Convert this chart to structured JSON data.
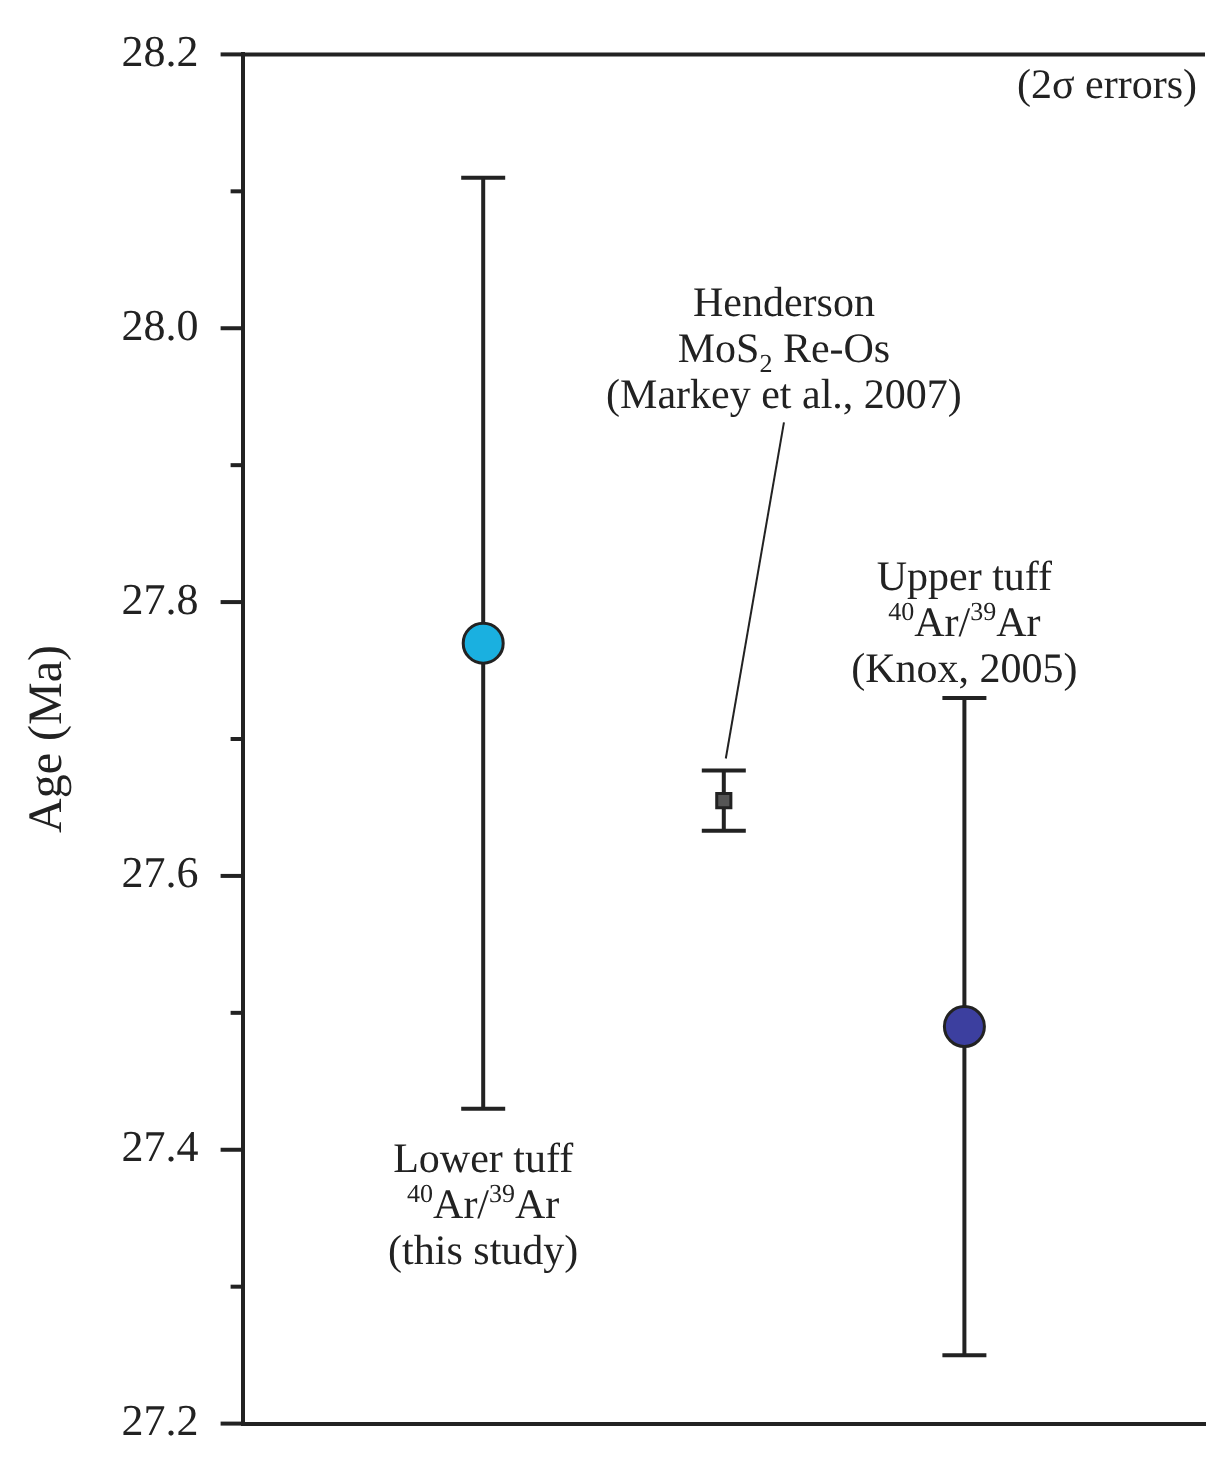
{
  "chart_data": {
    "type": "scatter",
    "ylabel": "Age (Ma)",
    "categories": [
      null,
      null,
      null
    ],
    "ylim": [
      27.2,
      28.2
    ],
    "yticks": [
      27.2,
      {
        "value": 27.3,
        "label": null
      },
      27.4,
      {
        "value": 27.5,
        "label": null
      },
      27.6,
      {
        "value": 27.7,
        "label": null
      },
      27.8,
      {
        "value": 27.9,
        "label": null
      },
      {
        "value": 28.0,
        "label": "28.0"
      },
      {
        "value": 28.1,
        "label": null
      },
      28.2
    ],
    "tick_labels": "y",
    "grid": false,
    "legend": false,
    "series": [
      {
        "color": "#1ab0e0",
        "marker": "circle",
        "values": [
          27.77,
          null,
          null
        ],
        "errors": [
          0.34,
          null,
          null
        ]
      },
      {
        "color": "#555555",
        "marker": "square",
        "values": [
          null,
          27.655,
          null
        ],
        "errors": [
          null,
          0.022,
          null
        ]
      },
      {
        "color": "#3c3f9f",
        "marker": "circle",
        "values": [
          null,
          null,
          27.49
        ],
        "errors": [
          null,
          null,
          0.24
        ]
      }
    ],
    "annotations": [
      "(2σ errors)",
      "Lower tuff\n$^{40}$Ar/$^{39}$Ar\n(this study)",
      "Henderson\nMoS$_{2}$ Re-Os\n(Markey et al., 2007)",
      "Upper tuff\n$^{40}$Ar/$^{39}$Ar\n(Knox, 2005)"
    ]
  }
}
